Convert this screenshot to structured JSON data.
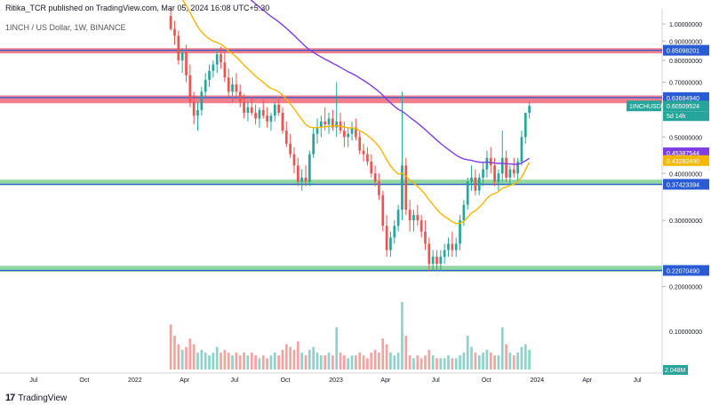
{
  "header": {
    "publisher_line": "Ritika_TCR published on TradingView.com, Mar 05, 2024 16:08 UTC+5:30",
    "symbol_line": "1INCH / US Dollar, 1W, BINANCE"
  },
  "footer": {
    "brand": "TradingView",
    "logo_glyph": "17"
  },
  "colors": {
    "up": "#26a69a",
    "down": "#ef5350",
    "upVol": "#8fd1cb",
    "downVol": "#f4a3a1",
    "ema_fast": "#f5b700",
    "ema_slow": "#7e3ee0",
    "red_zone": "#f06a78",
    "green_zone": "#7fcf91",
    "level_line": "#2a5bd7"
  },
  "chart_data": {
    "type": "candlestick",
    "scale": "log",
    "ylim": [
      0.19,
      1.05
    ],
    "y_ticks": [
      1.0,
      0.9,
      0.8,
      0.7,
      0.6,
      0.5,
      0.4,
      0.3,
      0.2
    ],
    "y_tick_labels": [
      "1.00000000",
      "0.90000000",
      "0.80000000",
      "0.70000000",
      "0.60000000",
      "0.50000000",
      "0.40000000",
      "0.30000000",
      "0.20000000"
    ],
    "volume_tick_label": "0.10000000",
    "x_start": "2021-05-01",
    "x_end": "2024-08-15",
    "x_ticks": [
      {
        "date": "2021-07-01",
        "label": "Jul"
      },
      {
        "date": "2021-10-01",
        "label": "Oct"
      },
      {
        "date": "2022-01-01",
        "label": "2022"
      },
      {
        "date": "2022-04-01",
        "label": "Apr"
      },
      {
        "date": "2022-07-01",
        "label": "Jul"
      },
      {
        "date": "2022-10-01",
        "label": "Oct"
      },
      {
        "date": "2023-01-01",
        "label": "2023"
      },
      {
        "date": "2023-04-01",
        "label": "Apr"
      },
      {
        "date": "2023-07-01",
        "label": "Jul"
      },
      {
        "date": "2023-10-01",
        "label": "Oct"
      },
      {
        "date": "2024-01-01",
        "label": "2024"
      },
      {
        "date": "2024-04-01",
        "label": "Apr"
      },
      {
        "date": "2024-07-01",
        "label": "Jul"
      }
    ],
    "zones": [
      {
        "kind": "red",
        "low": 0.835,
        "high": 0.862,
        "line": 0.85098201,
        "label": "0.85098201"
      },
      {
        "kind": "red",
        "low": 0.615,
        "high": 0.645,
        "line": 0.6368494,
        "label": "0.63684940"
      },
      {
        "kind": "green",
        "low": 0.372,
        "high": 0.385,
        "line": 0.37423394,
        "label": "0.37423394"
      },
      {
        "kind": "green",
        "low": 0.219,
        "high": 0.227,
        "line": 0.2207049,
        "label": "0.22070490"
      }
    ],
    "price_tags": [
      {
        "label": "1INCHUSD",
        "value": 0.60509524,
        "text": "0.60509524",
        "countdown": "5d 14h",
        "color": "#26a69a"
      },
      {
        "label": "",
        "value": 0.45387544,
        "text": "0.45387544",
        "color": "#7e3ee0"
      },
      {
        "label": "",
        "value": 0.4328249,
        "text": "0.43282490",
        "color": "#f5b700"
      }
    ],
    "volume_tag": "2.048M",
    "candles": {
      "start_date": "2022-03-07",
      "step_days": 7,
      "ohlc": [
        [
          1.05,
          1.1,
          0.96,
          0.97
        ],
        [
          0.97,
          1.02,
          0.88,
          0.93
        ],
        [
          0.93,
          0.96,
          0.78,
          0.8
        ],
        [
          0.8,
          0.86,
          0.74,
          0.84
        ],
        [
          0.84,
          0.88,
          0.7,
          0.73
        ],
        [
          0.73,
          0.78,
          0.6,
          0.62
        ],
        [
          0.62,
          0.66,
          0.54,
          0.57
        ],
        [
          0.57,
          0.62,
          0.52,
          0.59
        ],
        [
          0.59,
          0.68,
          0.57,
          0.66
        ],
        [
          0.66,
          0.74,
          0.63,
          0.71
        ],
        [
          0.71,
          0.78,
          0.68,
          0.75
        ],
        [
          0.75,
          0.8,
          0.72,
          0.78
        ],
        [
          0.78,
          0.86,
          0.74,
          0.83
        ],
        [
          0.83,
          0.87,
          0.76,
          0.79
        ],
        [
          0.79,
          0.84,
          0.7,
          0.72
        ],
        [
          0.72,
          0.76,
          0.64,
          0.66
        ],
        [
          0.66,
          0.72,
          0.62,
          0.69
        ],
        [
          0.69,
          0.74,
          0.64,
          0.66
        ],
        [
          0.66,
          0.69,
          0.6,
          0.62
        ],
        [
          0.62,
          0.65,
          0.56,
          0.58
        ],
        [
          0.58,
          0.62,
          0.55,
          0.6
        ],
        [
          0.6,
          0.64,
          0.57,
          0.58
        ],
        [
          0.58,
          0.61,
          0.54,
          0.56
        ],
        [
          0.56,
          0.6,
          0.53,
          0.59
        ],
        [
          0.59,
          0.63,
          0.56,
          0.57
        ],
        [
          0.57,
          0.6,
          0.53,
          0.55
        ],
        [
          0.55,
          0.58,
          0.52,
          0.57
        ],
        [
          0.57,
          0.62,
          0.55,
          0.61
        ],
        [
          0.61,
          0.64,
          0.57,
          0.58
        ],
        [
          0.58,
          0.6,
          0.51,
          0.52
        ],
        [
          0.52,
          0.55,
          0.47,
          0.48
        ],
        [
          0.48,
          0.51,
          0.44,
          0.45
        ],
        [
          0.45,
          0.47,
          0.4,
          0.42
        ],
        [
          0.42,
          0.44,
          0.37,
          0.38
        ],
        [
          0.38,
          0.41,
          0.36,
          0.39
        ],
        [
          0.39,
          0.42,
          0.37,
          0.38
        ],
        [
          0.38,
          0.46,
          0.37,
          0.45
        ],
        [
          0.45,
          0.53,
          0.44,
          0.51
        ],
        [
          0.51,
          0.56,
          0.48,
          0.53
        ],
        [
          0.53,
          0.57,
          0.5,
          0.55
        ],
        [
          0.55,
          0.6,
          0.52,
          0.54
        ],
        [
          0.54,
          0.58,
          0.51,
          0.56
        ],
        [
          0.56,
          0.59,
          0.52,
          0.53
        ],
        [
          0.53,
          0.7,
          0.5,
          0.55
        ],
        [
          0.55,
          0.58,
          0.51,
          0.52
        ],
        [
          0.52,
          0.55,
          0.47,
          0.5
        ],
        [
          0.5,
          0.53,
          0.47,
          0.51
        ],
        [
          0.51,
          0.55,
          0.49,
          0.53
        ],
        [
          0.53,
          0.56,
          0.49,
          0.5
        ],
        [
          0.5,
          0.52,
          0.45,
          0.46
        ],
        [
          0.46,
          0.48,
          0.43,
          0.45
        ],
        [
          0.45,
          0.47,
          0.42,
          0.43
        ],
        [
          0.43,
          0.45,
          0.39,
          0.4
        ],
        [
          0.4,
          0.42,
          0.37,
          0.38
        ],
        [
          0.38,
          0.4,
          0.34,
          0.35
        ],
        [
          0.35,
          0.36,
          0.28,
          0.29
        ],
        [
          0.29,
          0.31,
          0.24,
          0.25
        ],
        [
          0.25,
          0.28,
          0.24,
          0.27
        ],
        [
          0.27,
          0.3,
          0.26,
          0.29
        ],
        [
          0.29,
          0.33,
          0.28,
          0.32
        ],
        [
          0.32,
          0.66,
          0.3,
          0.42
        ],
        [
          0.42,
          0.44,
          0.31,
          0.32
        ],
        [
          0.32,
          0.34,
          0.28,
          0.3
        ],
        [
          0.3,
          0.32,
          0.28,
          0.31
        ],
        [
          0.31,
          0.33,
          0.29,
          0.3
        ],
        [
          0.3,
          0.31,
          0.27,
          0.28
        ],
        [
          0.28,
          0.3,
          0.25,
          0.26
        ],
        [
          0.26,
          0.27,
          0.22,
          0.23
        ],
        [
          0.23,
          0.25,
          0.22,
          0.24
        ],
        [
          0.24,
          0.25,
          0.22,
          0.23
        ],
        [
          0.23,
          0.25,
          0.22,
          0.24
        ],
        [
          0.24,
          0.26,
          0.23,
          0.25
        ],
        [
          0.25,
          0.27,
          0.24,
          0.26
        ],
        [
          0.26,
          0.28,
          0.24,
          0.25
        ],
        [
          0.25,
          0.27,
          0.24,
          0.26
        ],
        [
          0.26,
          0.31,
          0.25,
          0.3
        ],
        [
          0.3,
          0.34,
          0.29,
          0.33
        ],
        [
          0.33,
          0.39,
          0.32,
          0.38
        ],
        [
          0.38,
          0.42,
          0.36,
          0.39
        ],
        [
          0.39,
          0.41,
          0.35,
          0.36
        ],
        [
          0.36,
          0.4,
          0.35,
          0.39
        ],
        [
          0.39,
          0.43,
          0.37,
          0.41
        ],
        [
          0.41,
          0.46,
          0.39,
          0.44
        ],
        [
          0.44,
          0.47,
          0.4,
          0.42
        ],
        [
          0.42,
          0.44,
          0.37,
          0.38
        ],
        [
          0.38,
          0.41,
          0.36,
          0.4
        ],
        [
          0.4,
          0.52,
          0.38,
          0.44
        ],
        [
          0.44,
          0.46,
          0.38,
          0.39
        ],
        [
          0.39,
          0.42,
          0.37,
          0.41
        ],
        [
          0.41,
          0.44,
          0.39,
          0.4
        ],
        [
          0.4,
          0.44,
          0.38,
          0.43
        ],
        [
          0.43,
          0.52,
          0.42,
          0.5
        ],
        [
          0.5,
          0.58,
          0.48,
          0.58
        ],
        [
          0.58,
          0.62,
          0.56,
          0.605
        ]
      ],
      "volume": [
        1.6,
        1.2,
        0.9,
        0.7,
        0.8,
        1.1,
        0.9,
        0.6,
        0.7,
        0.6,
        0.5,
        0.6,
        0.8,
        0.6,
        0.7,
        0.6,
        0.5,
        0.6,
        0.5,
        0.6,
        0.5,
        0.6,
        0.5,
        0.4,
        0.5,
        0.4,
        0.5,
        0.6,
        0.5,
        0.7,
        0.9,
        0.8,
        0.7,
        1.0,
        0.6,
        0.5,
        0.7,
        0.8,
        0.6,
        0.5,
        0.5,
        0.6,
        0.5,
        1.5,
        0.6,
        0.5,
        0.4,
        0.5,
        0.5,
        0.6,
        0.5,
        0.4,
        0.6,
        0.7,
        0.6,
        1.1,
        0.9,
        0.6,
        0.5,
        0.6,
        2.4,
        1.2,
        0.5,
        0.4,
        0.5,
        0.4,
        0.5,
        0.7,
        0.5,
        0.4,
        0.4,
        0.4,
        0.5,
        0.4,
        0.4,
        0.5,
        0.6,
        1.2,
        0.8,
        0.6,
        0.5,
        0.6,
        0.7,
        0.6,
        0.5,
        0.5,
        1.5,
        0.9,
        0.6,
        0.5,
        0.6,
        0.8,
        0.9,
        0.7
      ]
    }
  }
}
